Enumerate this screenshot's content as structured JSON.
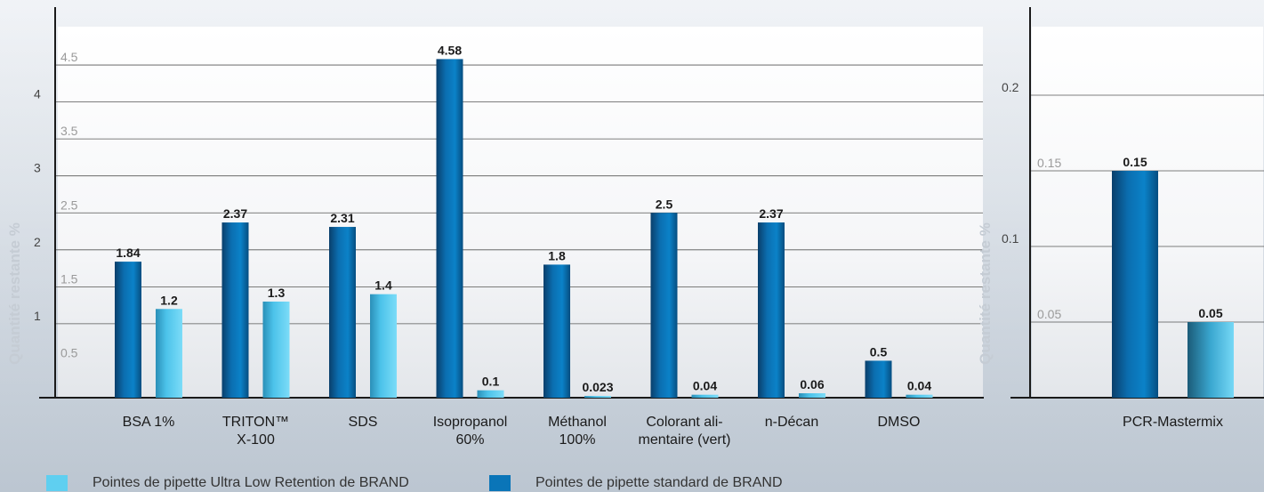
{
  "chart_data": [
    {
      "type": "bar",
      "ylabel": "Quantité restante %",
      "ylim": [
        0,
        5
      ],
      "y_ticks": [
        "0.5",
        "1",
        "1.5",
        "2",
        "2.5",
        "3",
        "3.5",
        "4",
        "4.5"
      ],
      "categories": [
        "BSA 1%",
        "TRITON™ X-100",
        "SDS",
        "Isopropanol 60%",
        "Méthanol 100%",
        "Colorant alimentaire (vert)",
        "n-Décan",
        "DMSO"
      ],
      "category_lines": [
        [
          "BSA 1%"
        ],
        [
          "TRITON™",
          "X-100"
        ],
        [
          "SDS"
        ],
        [
          "Isopropanol",
          "60%"
        ],
        [
          "Méthanol",
          "100%"
        ],
        [
          "Colorant ali-",
          "mentaire (vert)"
        ],
        [
          "n-Décan"
        ],
        [
          "DMSO"
        ]
      ],
      "series": [
        {
          "name": "Pointes de pipette standard de BRAND",
          "values": [
            1.84,
            2.37,
            2.31,
            4.58,
            1.8,
            2.5,
            2.37,
            0.5
          ],
          "labels": [
            "1.84",
            "2.37",
            "2.31",
            "4.58",
            "1.8",
            "2.5",
            "2.37",
            "0.5"
          ]
        },
        {
          "name": "Pointes de pipette Ultra Low Retention de BRAND",
          "values": [
            1.2,
            1.3,
            1.4,
            0.1,
            0.023,
            0.04,
            0.06,
            0.04
          ],
          "labels": [
            "1.2",
            "1.3",
            "1.4",
            "0.1",
            "0.023",
            "0.04",
            "0.06",
            "0.04"
          ]
        }
      ]
    },
    {
      "type": "bar",
      "ylabel": "Quantité restante %",
      "ylim": [
        0,
        0.25
      ],
      "y_ticks": [
        "0.05",
        "0.1",
        "0.15",
        "0.2"
      ],
      "categories": [
        "PCR-Mastermix"
      ],
      "category_lines": [
        [
          "PCR-Mastermix"
        ]
      ],
      "series": [
        {
          "name": "Pointes de pipette standard de BRAND",
          "values": [
            0.15
          ],
          "labels": [
            "0.15"
          ]
        },
        {
          "name": "Pointes de pipette Ultra Low Retention de BRAND",
          "values": [
            0.05
          ],
          "labels": [
            "0.05"
          ]
        }
      ]
    }
  ],
  "legend": [
    {
      "label": "Pointes de pipette Ultra Low Retention de BRAND",
      "color": "#5fcff0"
    },
    {
      "label": "Pointes de pipette standard de BRAND",
      "color": "#0a75b8"
    }
  ],
  "colors": {
    "standard_bar": "#0a75b8",
    "ulr_bar": "#5fcff0",
    "axis": "#1a1a1a",
    "grid": "#555555"
  }
}
